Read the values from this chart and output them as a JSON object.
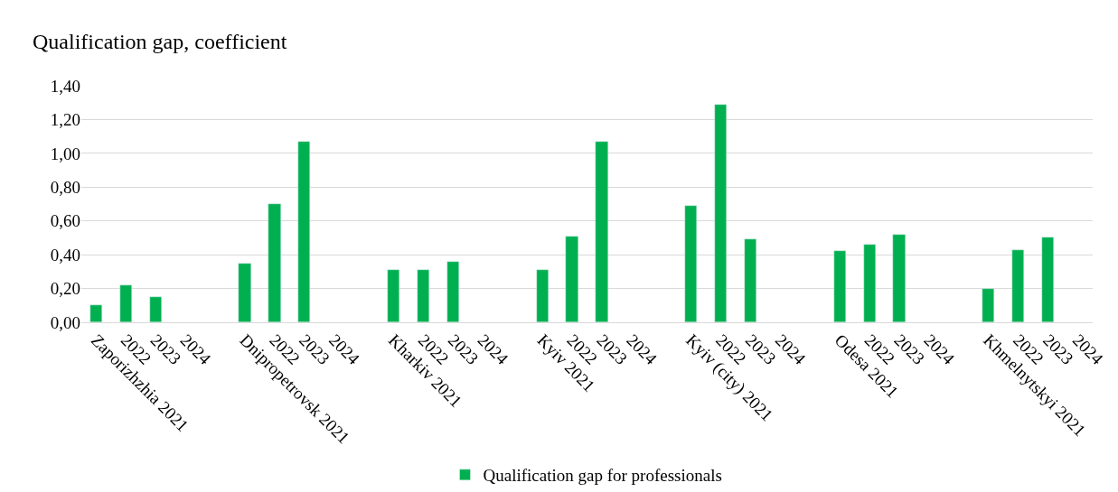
{
  "chart_data": {
    "type": "bar",
    "ylabel": "Qualification gap, coefficient",
    "categories": [
      "Zaporizhzhia 2021",
      "2022",
      "2023",
      "2024",
      null,
      "Dnipropetrovsk 2021",
      "2022",
      "2023",
      "2024",
      null,
      "Kharkiv 2021",
      "2022",
      "2023",
      "2024",
      null,
      "Kyiv 2021",
      "2022",
      "2023",
      "2024",
      null,
      "Kyiv (city) 2021",
      "2022",
      "2023",
      "2024",
      null,
      "Odesa 2021",
      "2022",
      "2023",
      "2024",
      null,
      "Khmelnytskyi 2021",
      "2022",
      "2023",
      "2024"
    ],
    "series": [
      {
        "name": "Qualification gap for professionals",
        "color": "#00b050",
        "values": [
          0.1,
          0.22,
          0.15,
          null,
          null,
          0.35,
          0.7,
          1.07,
          null,
          null,
          0.31,
          0.31,
          0.36,
          null,
          null,
          0.31,
          0.51,
          1.07,
          null,
          null,
          0.69,
          1.29,
          0.49,
          null,
          null,
          0.42,
          0.46,
          0.52,
          null,
          null,
          0.2,
          0.43,
          0.5,
          null
        ]
      }
    ],
    "ylim": [
      0,
      1.4
    ],
    "yticks": [
      {
        "value": 0,
        "label": "0,00"
      },
      {
        "value": 0.2,
        "label": "0,20"
      },
      {
        "value": 0.4,
        "label": "0,40"
      },
      {
        "value": 0.6,
        "label": "0,60"
      },
      {
        "value": 0.8,
        "label": "0,80"
      },
      {
        "value": 1.0,
        "label": "1,00"
      },
      {
        "value": 1.2,
        "label": "1,20"
      },
      {
        "value": 1.4,
        "label": "1,40"
      }
    ],
    "grid": "y",
    "legend": "bottom"
  }
}
